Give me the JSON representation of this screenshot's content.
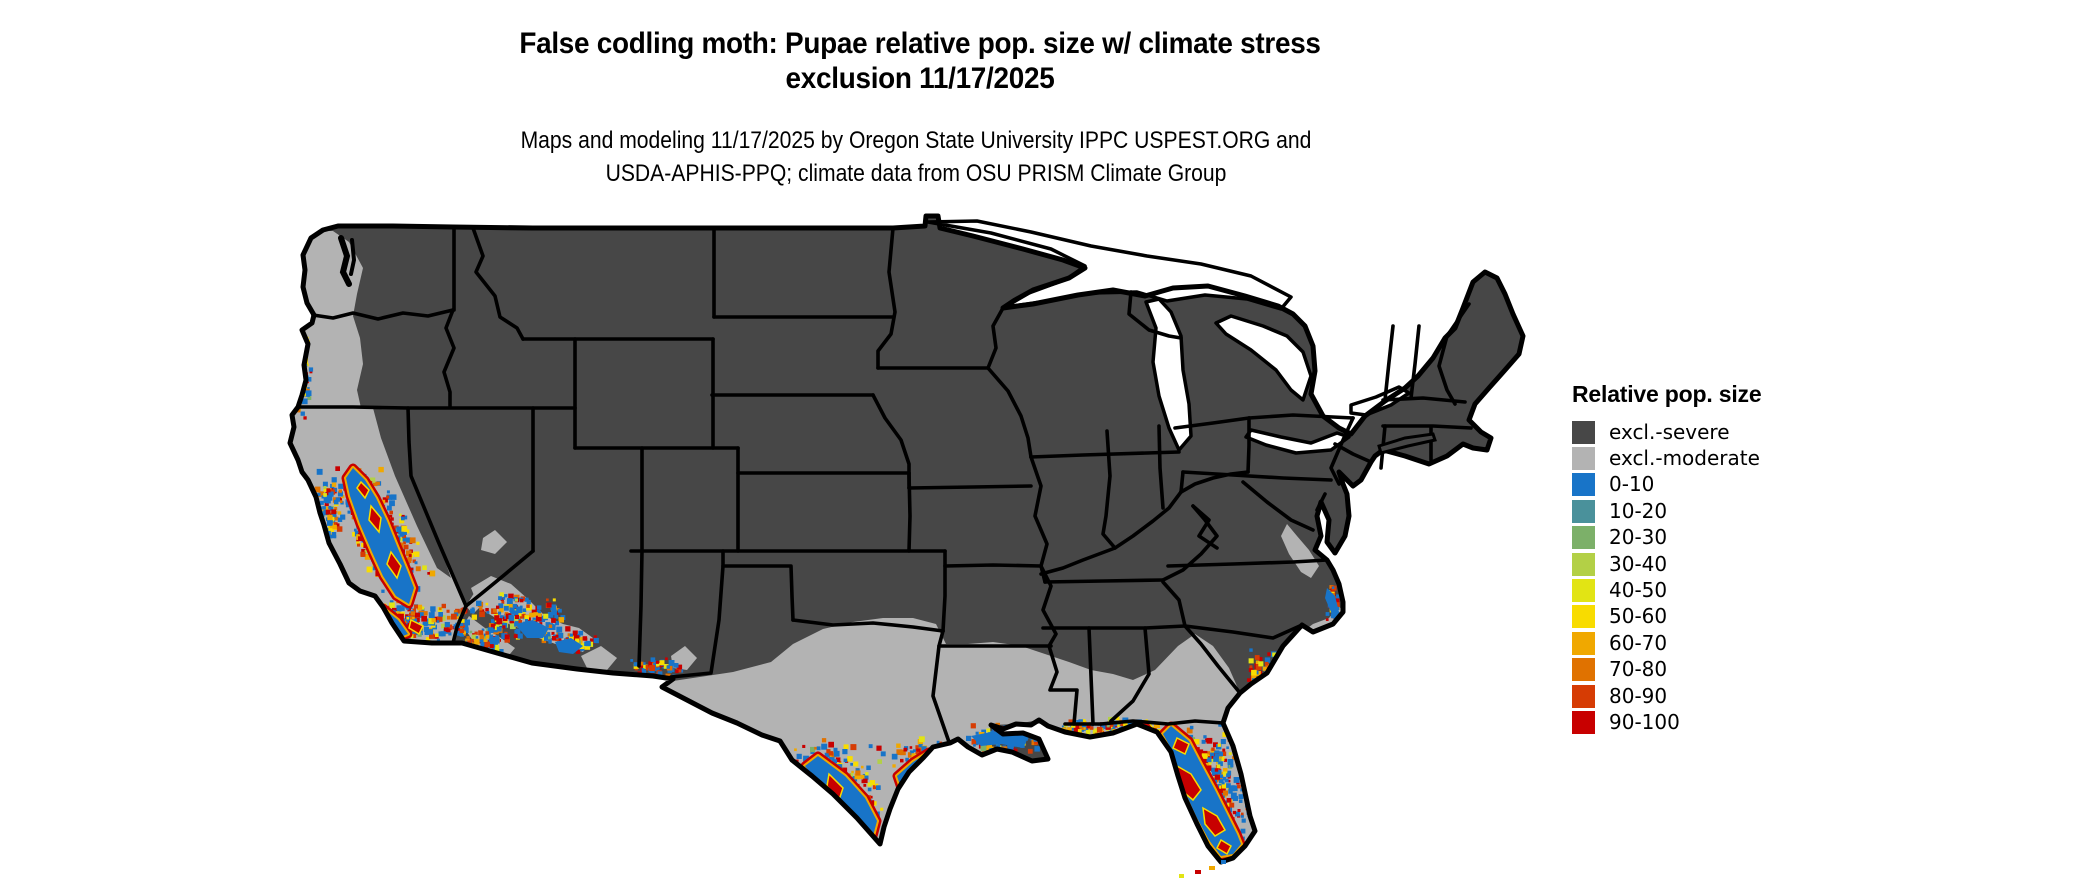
{
  "header": {
    "title_line1": "False codling moth: Pupae relative pop. size w/ climate stress",
    "title_line2": "exclusion 11/17/2025",
    "subtitle_line1": "Maps and modeling 11/17/2025 by Oregon State University IPPC USPEST.ORG and",
    "subtitle_line2": "USDA-APHIS-PPQ; climate data from OSU PRISM Climate Group"
  },
  "legend": {
    "title": "Relative pop. size",
    "items": [
      {
        "label": "excl.-severe",
        "color": "#474747"
      },
      {
        "label": "excl.-moderate",
        "color": "#b3b3b3"
      },
      {
        "label": "0-10",
        "color": "#1874c8"
      },
      {
        "label": "10-20",
        "color": "#4a919b"
      },
      {
        "label": "20-30",
        "color": "#7cb069"
      },
      {
        "label": "30-40",
        "color": "#b3d046"
      },
      {
        "label": "40-50",
        "color": "#e2e414"
      },
      {
        "label": "50-60",
        "color": "#f8dc00"
      },
      {
        "label": "60-70",
        "color": "#f0a800"
      },
      {
        "label": "70-80",
        "color": "#e07200"
      },
      {
        "label": "80-90",
        "color": "#d63c04"
      },
      {
        "label": "90-100",
        "color": "#c80000"
      }
    ]
  },
  "map": {
    "region_label": "contiguous United States"
  }
}
